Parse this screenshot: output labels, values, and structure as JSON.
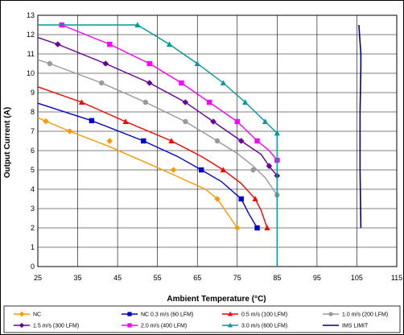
{
  "chart_data": {
    "type": "line",
    "title": "",
    "xlabel": "Ambient Temperature (°C)",
    "ylabel": "Output Current (A)",
    "xlim": [
      25,
      115
    ],
    "ylim": [
      0,
      13
    ],
    "xticks": [
      25,
      35,
      45,
      55,
      65,
      75,
      85,
      95,
      105,
      115
    ],
    "yticks": [
      0,
      1,
      2,
      3,
      4,
      5,
      6,
      7,
      8,
      9,
      10,
      11,
      12,
      13
    ],
    "grid": true,
    "legend_position": "bottom",
    "series": [
      {
        "name": "NC",
        "color": "#FF9900",
        "marker": "diamond",
        "line_points": [
          [
            25,
            7.7
          ],
          [
            27,
            7.52
          ],
          [
            33,
            7.0
          ],
          [
            43,
            6.2
          ],
          [
            53,
            5.3
          ],
          [
            59,
            4.75
          ],
          [
            67,
            4.0
          ],
          [
            70,
            3.5
          ],
          [
            73,
            2.6
          ],
          [
            75,
            2.0
          ]
        ],
        "markers": [
          [
            27,
            7.52
          ],
          [
            33,
            7.0
          ],
          [
            43,
            6.5
          ],
          [
            59,
            5.0
          ],
          [
            70,
            3.5
          ],
          [
            75,
            2.0
          ]
        ]
      },
      {
        "name": "NC 0.3 m/s (60 LFM)",
        "color": "#0000CC",
        "marker": "square",
        "line_points": [
          [
            25,
            8.45
          ],
          [
            38.5,
            7.55
          ],
          [
            51.5,
            6.5
          ],
          [
            60,
            5.7
          ],
          [
            66,
            5.0
          ],
          [
            71,
            4.4
          ],
          [
            76,
            3.5
          ],
          [
            78,
            2.7
          ],
          [
            80,
            2.0
          ]
        ],
        "markers": [
          [
            38.5,
            7.55
          ],
          [
            51.5,
            6.5
          ],
          [
            66,
            5.0
          ],
          [
            76,
            3.5
          ],
          [
            80,
            2.0
          ]
        ]
      },
      {
        "name": "0.5 m/s (100 LFM)",
        "color": "#FF0000",
        "marker": "triangle",
        "line_points": [
          [
            25,
            9.3
          ],
          [
            36,
            8.5
          ],
          [
            47,
            7.5
          ],
          [
            58.5,
            6.5
          ],
          [
            66,
            5.7
          ],
          [
            71.5,
            5.0
          ],
          [
            76,
            4.3
          ],
          [
            79.5,
            3.5
          ],
          [
            81,
            2.9
          ],
          [
            82.5,
            2.0
          ]
        ],
        "markers": [
          [
            36,
            8.5
          ],
          [
            47,
            7.5
          ],
          [
            58.5,
            6.5
          ],
          [
            71.5,
            5.0
          ],
          [
            79.5,
            3.5
          ],
          [
            82.5,
            2.0
          ]
        ]
      },
      {
        "name": "1.0 m/s (200 LFM)",
        "color": "#999999",
        "marker": "circle",
        "line_points": [
          [
            25,
            10.7
          ],
          [
            28,
            10.5
          ],
          [
            41,
            9.5
          ],
          [
            52,
            8.5
          ],
          [
            62,
            7.5
          ],
          [
            70,
            6.5
          ],
          [
            75,
            5.85
          ],
          [
            79,
            5.2
          ],
          [
            82,
            4.6
          ],
          [
            85,
            3.7
          ]
        ],
        "markers": [
          [
            28,
            10.5
          ],
          [
            41,
            9.5
          ],
          [
            52,
            8.5
          ],
          [
            62,
            7.5
          ],
          [
            70,
            6.5
          ],
          [
            79,
            5.0
          ],
          [
            85,
            3.7
          ]
        ]
      },
      {
        "name": "1.5 m/s (300 LFM)",
        "color": "#660099",
        "marker": "diamond",
        "line_points": [
          [
            25,
            11.85
          ],
          [
            30,
            11.5
          ],
          [
            42,
            10.5
          ],
          [
            53,
            9.5
          ],
          [
            62,
            8.5
          ],
          [
            69,
            7.5
          ],
          [
            76,
            6.5
          ],
          [
            81,
            5.8
          ],
          [
            83,
            5.2
          ],
          [
            85,
            4.7
          ]
        ],
        "markers": [
          [
            30,
            11.5
          ],
          [
            42,
            10.5
          ],
          [
            53,
            9.5
          ],
          [
            62,
            8.5
          ],
          [
            69,
            7.5
          ],
          [
            76,
            6.5
          ],
          [
            83,
            5.2
          ],
          [
            85,
            4.7
          ]
        ]
      },
      {
        "name": "2.0 m/s (400 LFM)",
        "color": "#FF00FF",
        "marker": "square",
        "line_points": [
          [
            31,
            12.5
          ],
          [
            43,
            11.5
          ],
          [
            53,
            10.5
          ],
          [
            61,
            9.5
          ],
          [
            68,
            8.5
          ],
          [
            75,
            7.5
          ],
          [
            80,
            6.5
          ],
          [
            83,
            6.0
          ],
          [
            85,
            5.5
          ]
        ],
        "markers": [
          [
            31,
            12.5
          ],
          [
            43,
            11.5
          ],
          [
            53,
            10.5
          ],
          [
            61,
            9.5
          ],
          [
            68,
            8.5
          ],
          [
            75,
            7.5
          ],
          [
            80,
            6.5
          ],
          [
            85,
            5.5
          ]
        ]
      },
      {
        "name": "3.0 m/s (600 LFM)",
        "color": "#009999",
        "marker": "triangle",
        "line_points": [
          [
            25,
            12.5
          ],
          [
            50,
            12.5
          ],
          [
            58,
            11.5
          ],
          [
            65,
            10.5
          ],
          [
            71.5,
            9.5
          ],
          [
            77,
            8.5
          ],
          [
            82,
            7.5
          ],
          [
            85,
            6.9
          ],
          [
            85,
            0
          ]
        ],
        "markers": [
          [
            50,
            12.5
          ],
          [
            58,
            11.5
          ],
          [
            65,
            10.5
          ],
          [
            71.5,
            9.5
          ],
          [
            77,
            8.5
          ],
          [
            82,
            7.5
          ],
          [
            85,
            6.9
          ]
        ]
      },
      {
        "name": "IMS LIMIT",
        "color": "#000080",
        "marker": "none",
        "line_points": [
          [
            105.5,
            12.5
          ],
          [
            106,
            11.0
          ],
          [
            106,
            10.4
          ],
          [
            105.8,
            8.0
          ],
          [
            105.8,
            5.0
          ],
          [
            106,
            2.0
          ]
        ],
        "markers": []
      }
    ]
  }
}
